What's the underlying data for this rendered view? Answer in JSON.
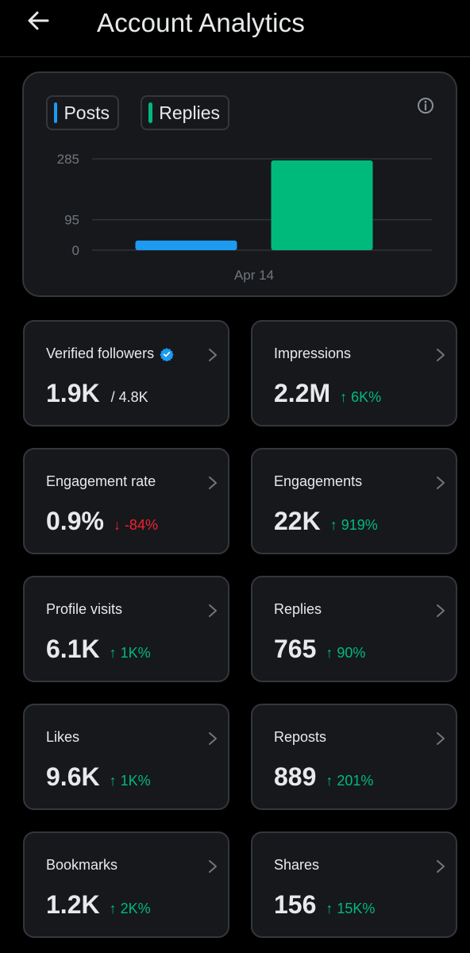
{
  "header": {
    "title": "Account Analytics",
    "back_icon": "arrow-left-icon"
  },
  "chart": {
    "legend": [
      {
        "label": "Posts",
        "color": "#1d9bf0"
      },
      {
        "label": "Replies",
        "color": "#00ba7c"
      }
    ],
    "info_icon": "info-icon"
  },
  "chart_data": {
    "type": "bar",
    "categories": [
      "Apr 14"
    ],
    "series": [
      {
        "name": "Posts",
        "values": [
          30
        ],
        "color": "#1d9bf0"
      },
      {
        "name": "Replies",
        "values": [
          280
        ],
        "color": "#00ba7c"
      }
    ],
    "y_ticks": [
      "285",
      "95",
      "0"
    ],
    "ylim": [
      0,
      285
    ],
    "grid": true,
    "legend_position": "top-left"
  },
  "metrics": [
    {
      "label": "Verified followers",
      "value": "1.9K",
      "total": "/ 4.8K",
      "verified": true
    },
    {
      "label": "Impressions",
      "value": "2.2M",
      "change": "6K%",
      "direction": "up"
    },
    {
      "label": "Engagement rate",
      "value": "0.9%",
      "change": "-84%",
      "direction": "down"
    },
    {
      "label": "Engagements",
      "value": "22K",
      "change": "919%",
      "direction": "up"
    },
    {
      "label": "Profile visits",
      "value": "6.1K",
      "change": "1K%",
      "direction": "up"
    },
    {
      "label": "Replies",
      "value": "765",
      "change": "90%",
      "direction": "up"
    },
    {
      "label": "Likes",
      "value": "9.6K",
      "change": "1K%",
      "direction": "up"
    },
    {
      "label": "Reposts",
      "value": "889",
      "change": "201%",
      "direction": "up"
    },
    {
      "label": "Bookmarks",
      "value": "1.2K",
      "change": "2K%",
      "direction": "up"
    },
    {
      "label": "Shares",
      "value": "156",
      "change": "15K%",
      "direction": "up"
    }
  ]
}
